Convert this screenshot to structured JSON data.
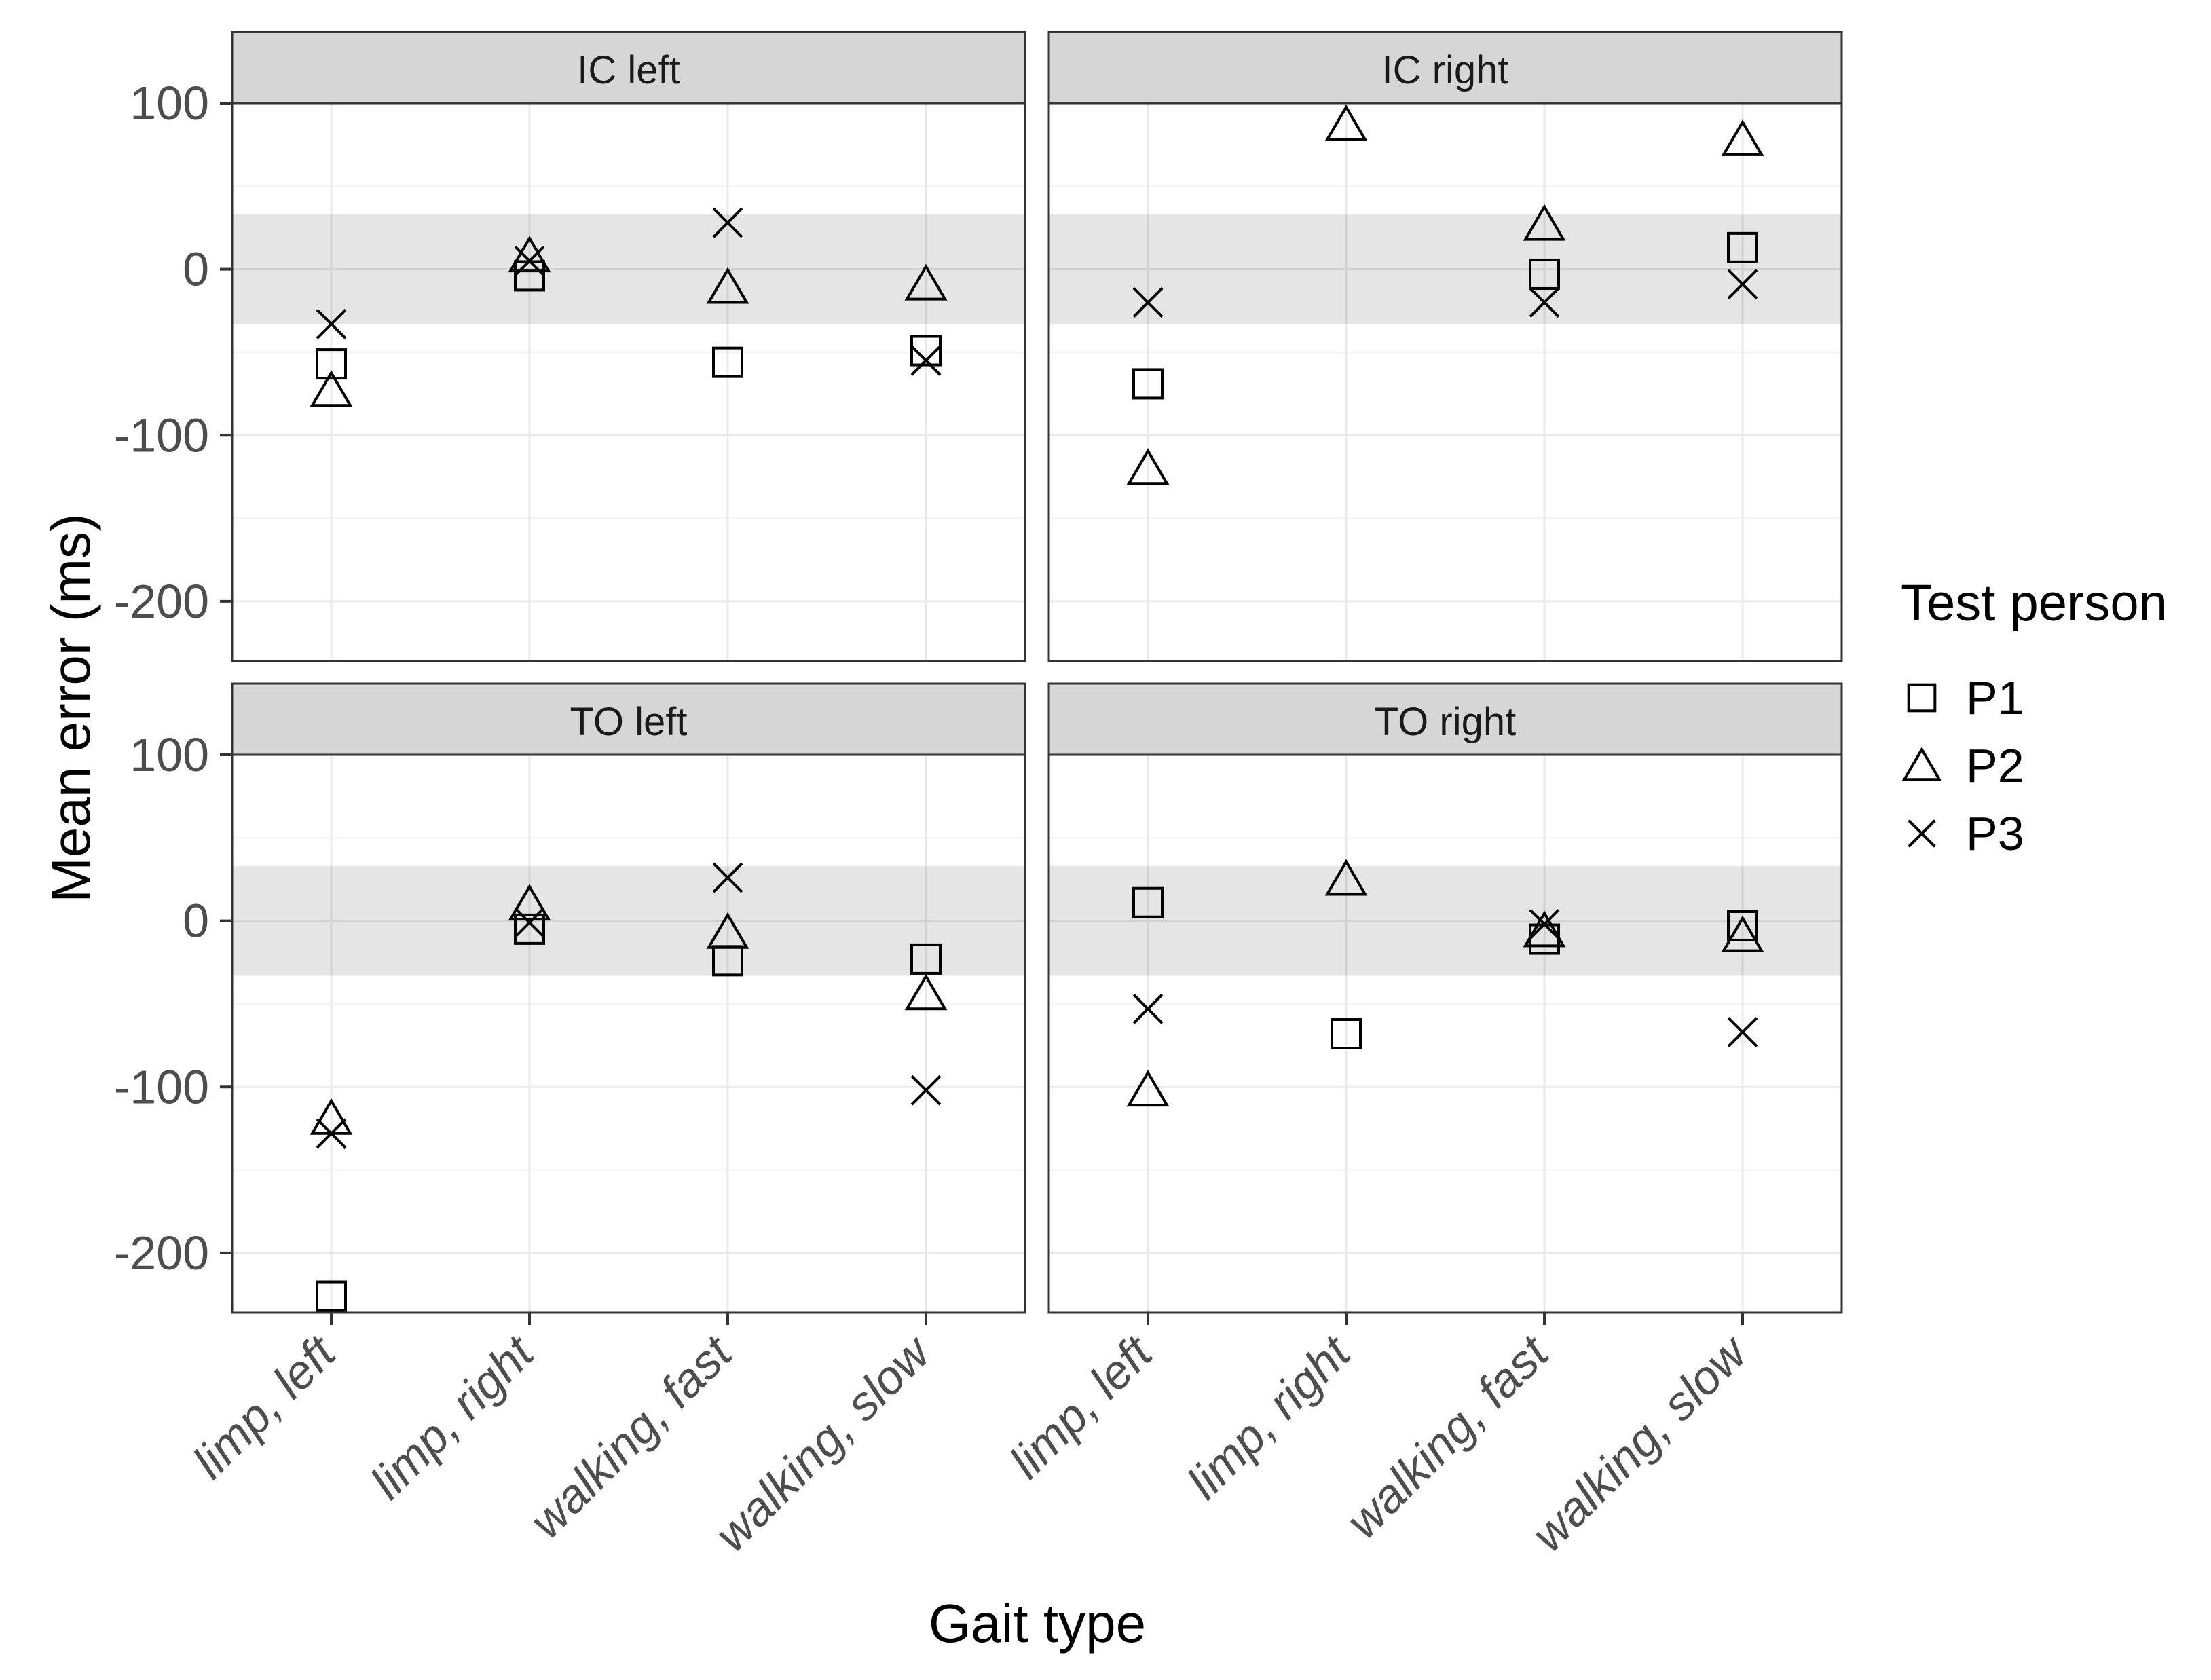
{
  "chart_data": {
    "type": "scatter",
    "title": "",
    "xlabel": "Gait type",
    "ylabel": "Mean error (ms)",
    "categories": [
      "limp, left",
      "limp, right",
      "walking, fast",
      "walking, slow"
    ],
    "ylim": [
      -236,
      100
    ],
    "yticks": [
      100,
      0,
      -100,
      -200
    ],
    "yticks_minor": [
      50,
      -50,
      -150
    ],
    "grid": true,
    "reference_band": [
      -33,
      33
    ],
    "facet_layout": [
      [
        "IC left",
        "IC right"
      ],
      [
        "TO left",
        "TO right"
      ]
    ],
    "facets": [
      {
        "label": "IC left",
        "row": 0,
        "col": 0,
        "series": [
          {
            "name": "P1",
            "marker": "square",
            "values": [
              -57,
              -4,
              -56,
              -49
            ]
          },
          {
            "name": "P2",
            "marker": "triangle",
            "values": [
              -73,
              8,
              -11,
              -9
            ]
          },
          {
            "name": "P3",
            "marker": "cross",
            "values": [
              -33,
              5,
              28,
              -55
            ]
          }
        ]
      },
      {
        "label": "IC right",
        "row": 0,
        "col": 1,
        "series": [
          {
            "name": "P1",
            "marker": "square",
            "values": [
              -69,
              null,
              -3,
              13
            ]
          },
          {
            "name": "P2",
            "marker": "triangle",
            "values": [
              -120,
              87,
              27,
              78
            ]
          },
          {
            "name": "P3",
            "marker": "cross",
            "values": [
              -20,
              null,
              -20,
              -9
            ]
          }
        ]
      },
      {
        "label": "TO left",
        "row": 1,
        "col": 0,
        "series": [
          {
            "name": "P1",
            "marker": "square",
            "values": [
              -226,
              -5,
              -24,
              -23
            ]
          },
          {
            "name": "P2",
            "marker": "triangle",
            "values": [
              -119,
              10,
              -7,
              -44
            ]
          },
          {
            "name": "P3",
            "marker": "cross",
            "values": [
              -128,
              -1,
              26,
              -102
            ]
          }
        ]
      },
      {
        "label": "TO right",
        "row": 1,
        "col": 1,
        "series": [
          {
            "name": "P1",
            "marker": "square",
            "values": [
              11,
              -68,
              -11,
              -3
            ]
          },
          {
            "name": "P2",
            "marker": "triangle",
            "values": [
              -102,
              25,
              -6,
              -9
            ]
          },
          {
            "name": "P3",
            "marker": "cross",
            "values": [
              -53,
              null,
              -2,
              -67
            ]
          }
        ]
      }
    ],
    "legend": {
      "title": "Test person",
      "position": "right",
      "entries": [
        {
          "label": "P1",
          "marker": "square"
        },
        {
          "label": "P2",
          "marker": "triangle"
        },
        {
          "label": "P3",
          "marker": "cross"
        }
      ]
    }
  },
  "colors": {
    "background": "#ffffff",
    "strip_bg": "#d6d6d6",
    "panel_border": "#333333",
    "grid_major": "#e9e9e9",
    "grid_minor": "#f5f5f5",
    "reference_band": "rgba(0,0,0,0.10)",
    "tick_label": "#4d4d4d",
    "strip_text": "#1a1a1a",
    "marker": "#000000",
    "text": "#000000"
  }
}
